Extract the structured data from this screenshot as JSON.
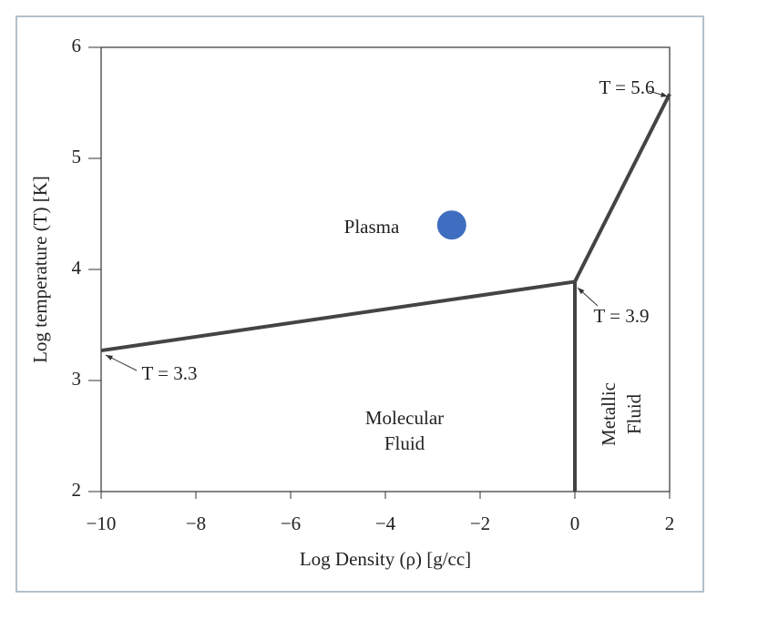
{
  "chart_data": {
    "type": "line",
    "xlabel": "Log Density (ρ) [g/cc]",
    "ylabel": "Log temperature (T) [K]",
    "xlim": [
      -10,
      2
    ],
    "ylim": [
      2,
      6
    ],
    "xticks": [
      {
        "value": -10,
        "label": "−10"
      },
      {
        "value": -8,
        "label": "−8"
      },
      {
        "value": -6,
        "label": "−6"
      },
      {
        "value": -4,
        "label": "−4"
      },
      {
        "value": -2,
        "label": "−2"
      },
      0,
      2
    ],
    "yticks": [
      2,
      3,
      4,
      5,
      6
    ],
    "series": [
      {
        "color": "#444444",
        "x": [
          -10,
          0,
          2
        ],
        "values": [
          3.27,
          3.89,
          5.58
        ]
      },
      {
        "color": "#444444",
        "x": [
          0,
          0
        ],
        "values": [
          3.89,
          2
        ]
      },
      {
        "type": "scatter",
        "color": "#3f6dbf",
        "x": [
          -2.6
        ],
        "values": [
          4.4
        ]
      }
    ],
    "annotations": [
      "T = 5.6",
      "T = 3.9",
      "T = 3.3"
    ],
    "regions": [
      [
        "Plasma"
      ],
      [
        "Molecular",
        "Fluid"
      ],
      [
        "Metallic",
        "Fluid"
      ]
    ]
  }
}
